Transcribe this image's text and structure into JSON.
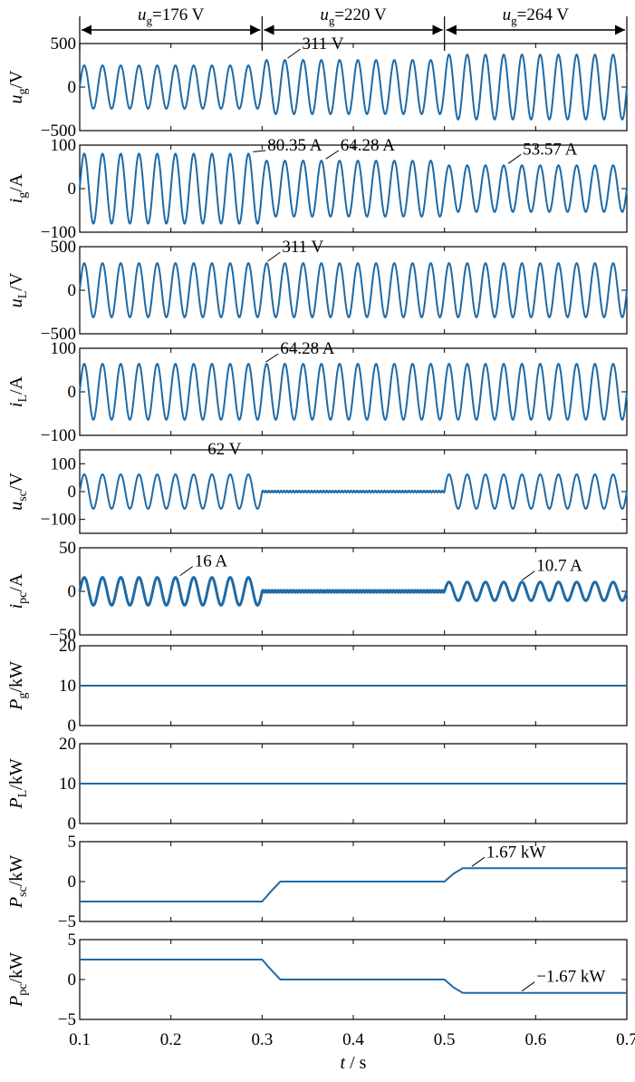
{
  "chart_data": {
    "type": "line",
    "xlabel": "t / s",
    "xlim": [
      0.1,
      0.7
    ],
    "xticks": [
      "0.1",
      "0.2",
      "0.3",
      "0.4",
      "0.5",
      "0.6",
      "0.7"
    ],
    "line_color": "#1f6aa5",
    "regions": [
      {
        "name": "u",
        "sub": "g",
        "label": "u_g = 176 V",
        "value": "=176 V",
        "from": 0.1,
        "to": 0.3
      },
      {
        "name": "u",
        "sub": "g",
        "label": "u_g = 220 V",
        "value": "=220 V",
        "from": 0.3,
        "to": 0.5
      },
      {
        "name": "u",
        "sub": "g",
        "label": "u_g = 264 V",
        "value": "=264 V",
        "from": 0.5,
        "to": 0.7
      }
    ],
    "panels": [
      {
        "id": "ug",
        "ylabel": "u_g / V",
        "sym": "u",
        "sub": "g",
        "unit": "/V",
        "ylim": [
          -500,
          500
        ],
        "yticks": [
          "500",
          "0",
          "−500"
        ],
        "signal": {
          "kind": "sine",
          "freq": 50,
          "segments": [
            {
              "from": 0.1,
              "to": 0.3,
              "amp": 249
            },
            {
              "from": 0.3,
              "to": 0.5,
              "amp": 311
            },
            {
              "from": 0.5,
              "to": 0.7,
              "amp": 373
            }
          ]
        },
        "annotations": [
          {
            "text": "311 V",
            "x": 0.328,
            "y": 311
          }
        ]
      },
      {
        "id": "ig",
        "ylabel": "i_g / A",
        "sym": "i",
        "sub": "g",
        "unit": "/A",
        "ylim": [
          -100,
          100
        ],
        "yticks": [
          "100",
          "0",
          "−100"
        ],
        "signal": {
          "kind": "sine",
          "freq": 50,
          "segments": [
            {
              "from": 0.1,
              "to": 0.3,
              "amp": 80.35
            },
            {
              "from": 0.3,
              "to": 0.5,
              "amp": 64.28
            },
            {
              "from": 0.5,
              "to": 0.7,
              "amp": 53.57
            }
          ]
        },
        "annotations": [
          {
            "text": "80.35 A",
            "x": 0.29,
            "y": 80.35
          },
          {
            "text": "64.28 A",
            "x": 0.37,
            "y": 64.28
          },
          {
            "text": "53.57 A",
            "x": 0.57,
            "y": 53.57
          }
        ]
      },
      {
        "id": "uL",
        "ylabel": "u_L / V",
        "sym": "u",
        "sub": "L",
        "unit": "/V",
        "ylim": [
          -500,
          500
        ],
        "yticks": [
          "500",
          "0",
          "−500"
        ],
        "signal": {
          "kind": "sine",
          "freq": 50,
          "segments": [
            {
              "from": 0.1,
              "to": 0.7,
              "amp": 311
            }
          ]
        },
        "annotations": [
          {
            "text": "311 V",
            "x": 0.306,
            "y": 311
          }
        ]
      },
      {
        "id": "iL",
        "ylabel": "i_L / A",
        "sym": "i",
        "sub": "L",
        "unit": "/A",
        "ylim": [
          -100,
          100
        ],
        "yticks": [
          "100",
          "0",
          "−100"
        ],
        "signal": {
          "kind": "sine",
          "freq": 50,
          "segments": [
            {
              "from": 0.1,
              "to": 0.7,
              "amp": 64.28
            }
          ]
        },
        "annotations": [
          {
            "text": "64.28 A",
            "x": 0.304,
            "y": 64.28
          }
        ]
      },
      {
        "id": "usc",
        "ylabel": "u_sc / V",
        "sym": "u",
        "sub": "sc",
        "unit": "/V",
        "ylim": [
          -150,
          150
        ],
        "yticks": [
          "100",
          "0",
          "−100"
        ],
        "ytick_values": [
          100,
          0,
          -100
        ],
        "signal": {
          "kind": "sine",
          "freq": 50,
          "segments": [
            {
              "from": 0.1,
              "to": 0.3,
              "amp": 62
            },
            {
              "from": 0.3,
              "to": 0.5,
              "amp": 0
            },
            {
              "from": 0.5,
              "to": 0.7,
              "amp": 62
            }
          ]
        },
        "annotations": [
          {
            "text": "62 V",
            "x": 0.285,
            "y": 62,
            "noleader": true
          }
        ]
      },
      {
        "id": "ipc",
        "ylabel": "i_pc / A",
        "sym": "i",
        "sub": "pc",
        "unit": "/A",
        "ylim": [
          -50,
          50
        ],
        "yticks": [
          "50",
          "0",
          "−50"
        ],
        "signal": {
          "kind": "sine",
          "freq": 50,
          "thick": true,
          "segments": [
            {
              "from": 0.1,
              "to": 0.3,
              "amp": 16
            },
            {
              "from": 0.3,
              "to": 0.5,
              "amp": 0
            },
            {
              "from": 0.5,
              "to": 0.7,
              "amp": 10.7
            }
          ]
        },
        "annotations": [
          {
            "text": "16 A",
            "x": 0.21,
            "y": 16
          },
          {
            "text": "10.7 A",
            "x": 0.585,
            "y": 10.7
          }
        ]
      },
      {
        "id": "Pg",
        "ylabel": "P_g / kW",
        "sym": "P",
        "sub": "g",
        "unit": "/kW",
        "ylim": [
          0,
          20
        ],
        "yticks": [
          "20",
          "10",
          "0"
        ],
        "ytick_values": [
          20,
          10,
          0
        ],
        "signal": {
          "kind": "steps",
          "points": [
            [
              0.1,
              10
            ],
            [
              0.7,
              10
            ]
          ]
        },
        "annotations": []
      },
      {
        "id": "PL",
        "ylabel": "P_L / kW",
        "sym": "P",
        "sub": "L",
        "unit": "/kW",
        "ylim": [
          0,
          20
        ],
        "yticks": [
          "20",
          "10",
          "0"
        ],
        "ytick_values": [
          20,
          10,
          0
        ],
        "signal": {
          "kind": "steps",
          "points": [
            [
              0.1,
              10
            ],
            [
              0.7,
              10
            ]
          ]
        },
        "annotations": []
      },
      {
        "id": "Psc",
        "ylabel": "P_sc / kW",
        "sym": "P",
        "sub": "sc",
        "unit": "/kW",
        "ylim": [
          -5,
          5
        ],
        "yticks": [
          "5",
          "0",
          "−5"
        ],
        "ytick_values": [
          5,
          0,
          -5
        ],
        "signal": {
          "kind": "steps",
          "points": [
            [
              0.1,
              -2.5
            ],
            [
              0.3,
              -2.5
            ],
            [
              0.31,
              -1.2
            ],
            [
              0.32,
              0
            ],
            [
              0.5,
              0
            ],
            [
              0.51,
              1.0
            ],
            [
              0.52,
              1.67
            ],
            [
              0.7,
              1.67
            ]
          ]
        },
        "annotations": [
          {
            "text": "1.67 kW",
            "x": 0.53,
            "y": 1.67
          }
        ]
      },
      {
        "id": "Ppc",
        "ylabel": "P_pc / kW",
        "sym": "P",
        "sub": "pc",
        "unit": "/kW",
        "ylim": [
          -5,
          5
        ],
        "yticks": [
          "5",
          "0",
          "−5"
        ],
        "ytick_values": [
          5,
          0,
          -5
        ],
        "signal": {
          "kind": "steps",
          "points": [
            [
              0.1,
              2.5
            ],
            [
              0.3,
              2.5
            ],
            [
              0.31,
              1.2
            ],
            [
              0.32,
              0
            ],
            [
              0.5,
              0
            ],
            [
              0.51,
              -1.0
            ],
            [
              0.52,
              -1.67
            ],
            [
              0.7,
              -1.67
            ]
          ]
        },
        "annotations": [
          {
            "text": "−1.67 kW",
            "x": 0.585,
            "y": -1.67
          }
        ]
      }
    ]
  }
}
